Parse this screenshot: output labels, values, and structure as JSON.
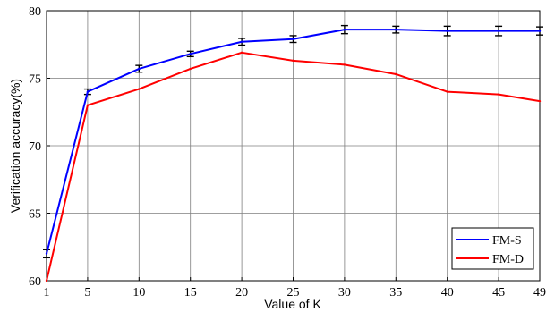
{
  "chart_data": {
    "type": "line",
    "title": "",
    "xlabel": "Value of K",
    "ylabel": "Verification accuracy(%)",
    "x": [
      1,
      5,
      10,
      15,
      20,
      25,
      30,
      35,
      40,
      45,
      49
    ],
    "x_tick_labels": [
      "1",
      "5",
      "10",
      "15",
      "20",
      "25",
      "30",
      "35",
      "40",
      "45",
      "49"
    ],
    "xlim": [
      1,
      49
    ],
    "ylim": [
      60,
      80
    ],
    "y_ticks": [
      60,
      65,
      70,
      75,
      80
    ],
    "y_tick_labels": [
      "60",
      "65",
      "70",
      "75",
      "80"
    ],
    "grid": true,
    "legend_position": "bottom-right",
    "series": [
      {
        "name": "FM-S",
        "color": "#0000ff",
        "values": [
          62.0,
          74.0,
          75.7,
          76.8,
          77.7,
          77.9,
          78.6,
          78.6,
          78.5,
          78.5,
          78.5
        ],
        "error": [
          0.3,
          0.2,
          0.25,
          0.2,
          0.25,
          0.25,
          0.3,
          0.25,
          0.35,
          0.35,
          0.3
        ]
      },
      {
        "name": "FM-D",
        "color": "#ff0000",
        "values": [
          60.0,
          73.0,
          74.2,
          75.7,
          76.9,
          76.3,
          76.0,
          75.3,
          74.0,
          73.8,
          73.3
        ]
      }
    ]
  }
}
